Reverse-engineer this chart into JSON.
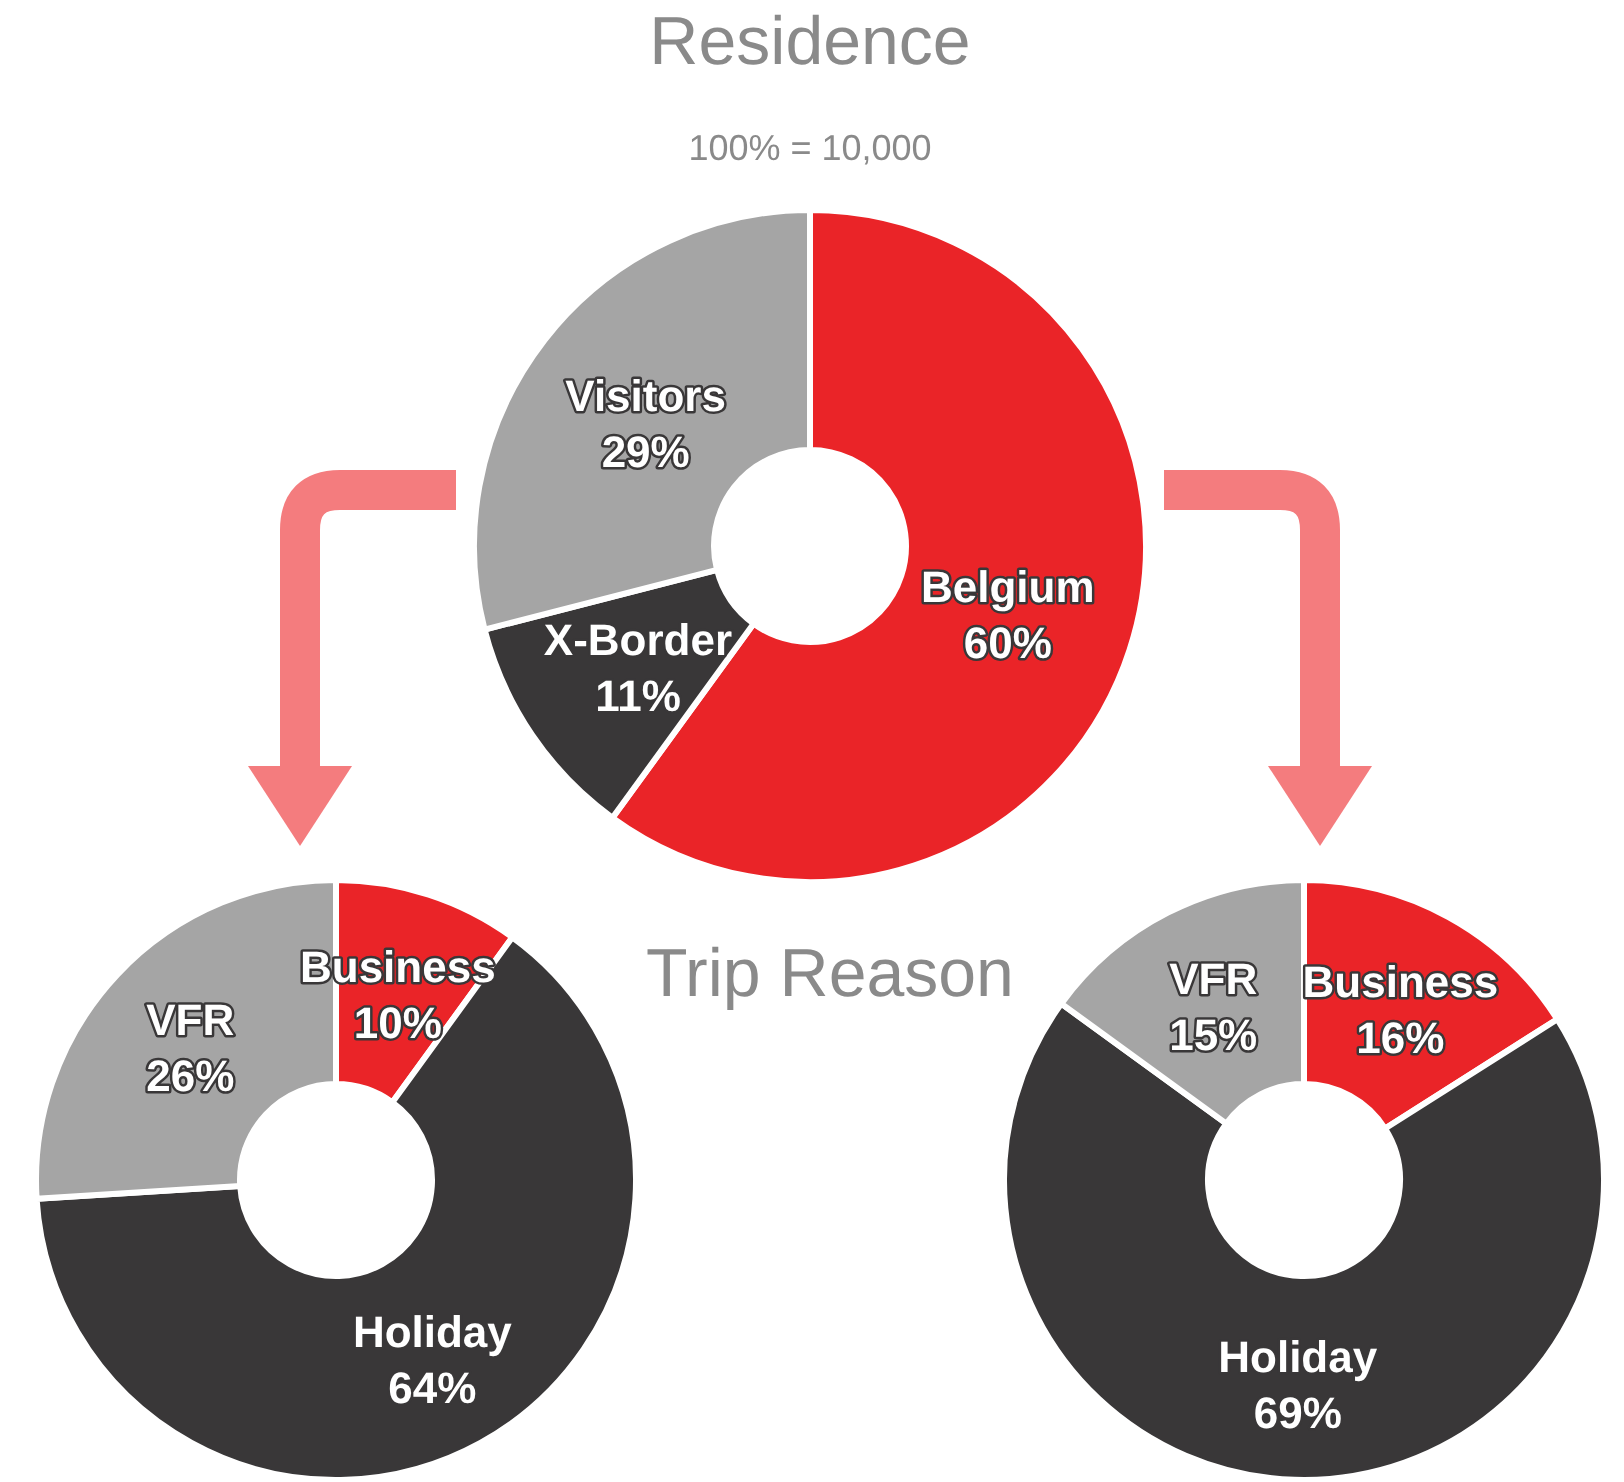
{
  "chart_data": [
    {
      "type": "donut",
      "title": "Residence",
      "subtitle": "100% = 10,000",
      "categories": [
        "Belgium",
        "X-Border",
        "Visitors"
      ],
      "values": [
        60,
        11,
        29
      ],
      "colors": [
        "#ea2428",
        "#393738",
        "#a5a5a5"
      ],
      "value_labels": [
        "60%",
        "11%",
        "29%"
      ]
    },
    {
      "type": "donut",
      "title": "Trip Reason",
      "categories": [
        "Business",
        "Holiday",
        "VFR"
      ],
      "values": [
        10,
        64,
        26
      ],
      "colors": [
        "#ea2428",
        "#393738",
        "#a5a5a5"
      ],
      "value_labels": [
        "10%",
        "64%",
        "26%"
      ]
    },
    {
      "type": "donut",
      "categories": [
        "Business",
        "Holiday",
        "VFR"
      ],
      "values": [
        16,
        69,
        15
      ],
      "colors": [
        "#ea2428",
        "#393738",
        "#a5a5a5"
      ],
      "value_labels": [
        "16%",
        "69%",
        "15%"
      ]
    }
  ]
}
